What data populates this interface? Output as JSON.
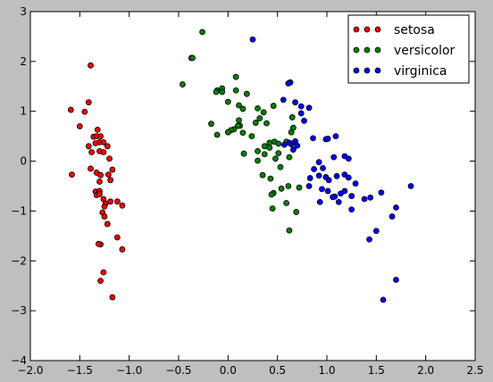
{
  "chart_data": {
    "type": "scatter",
    "xlim": [
      -2.0,
      2.5
    ],
    "ylim": [
      -4,
      3
    ],
    "x_ticks": [
      -2.0,
      -1.5,
      -1.0,
      -0.5,
      0.0,
      0.5,
      1.0,
      1.5,
      2.0,
      2.5
    ],
    "y_ticks": [
      -4,
      -3,
      -2,
      -1,
      0,
      1,
      2,
      3
    ],
    "x_tick_labels": [
      "−2.0",
      "−1.5",
      "−1.0",
      "−0.5",
      "0.0",
      "0.5",
      "1.0",
      "1.5",
      "2.0",
      "2.5"
    ],
    "y_tick_labels": [
      "−4",
      "−3",
      "−2",
      "−1",
      "0",
      "1",
      "2",
      "3"
    ],
    "grid": false,
    "legend_position": "top-right",
    "series": [
      {
        "name": "setosa",
        "color": "#ff0000",
        "points": [
          [
            -1.59,
            1.03
          ],
          [
            -1.45,
            0.99
          ],
          [
            -1.41,
            1.18
          ],
          [
            -1.39,
            1.92
          ],
          [
            -1.5,
            0.7
          ],
          [
            -1.32,
            0.63
          ],
          [
            -1.36,
            0.49
          ],
          [
            -1.33,
            0.5
          ],
          [
            -1.29,
            0.5
          ],
          [
            -1.3,
            0.38
          ],
          [
            -1.26,
            0.38
          ],
          [
            -1.22,
            0.3
          ],
          [
            -1.34,
            0.36
          ],
          [
            -1.41,
            0.3
          ],
          [
            -1.38,
            0.18
          ],
          [
            -1.3,
            0.2
          ],
          [
            -1.26,
            0.18
          ],
          [
            -1.2,
            0.05
          ],
          [
            -1.58,
            -0.27
          ],
          [
            -1.39,
            -0.15
          ],
          [
            -1.33,
            -0.23
          ],
          [
            -1.29,
            -0.28
          ],
          [
            -1.21,
            -0.27
          ],
          [
            -1.19,
            -0.38
          ],
          [
            -1.17,
            -0.17
          ],
          [
            -1.3,
            -0.41
          ],
          [
            -1.34,
            -0.61
          ],
          [
            -1.3,
            -0.6
          ],
          [
            -1.33,
            -0.68
          ],
          [
            -1.3,
            -0.66
          ],
          [
            -1.26,
            -0.76
          ],
          [
            -1.24,
            -0.85
          ],
          [
            -1.19,
            -0.81
          ],
          [
            -1.12,
            -0.81
          ],
          [
            -1.07,
            -0.89
          ],
          [
            -1.25,
            -0.91
          ],
          [
            -1.27,
            -1.03
          ],
          [
            -1.25,
            -1.11
          ],
          [
            -1.22,
            -1.26
          ],
          [
            -1.12,
            -1.53
          ],
          [
            -1.29,
            -1.67
          ],
          [
            -1.31,
            -1.66
          ],
          [
            -1.07,
            -1.77
          ],
          [
            -1.26,
            -2.23
          ],
          [
            -1.29,
            -2.4
          ],
          [
            -1.17,
            -2.73
          ]
        ]
      },
      {
        "name": "versicolor",
        "color": "#007f00",
        "points": [
          [
            -0.26,
            2.59
          ],
          [
            -0.37,
            2.07
          ],
          [
            -0.36,
            2.07
          ],
          [
            -0.46,
            1.54
          ],
          [
            0.08,
            1.69
          ],
          [
            -0.11,
            1.42
          ],
          [
            -0.06,
            1.46
          ],
          [
            -0.06,
            1.39
          ],
          [
            0.08,
            1.42
          ],
          [
            -0.12,
            1.39
          ],
          [
            0.19,
            1.35
          ],
          [
            0.0,
            1.19
          ],
          [
            0.11,
            1.12
          ],
          [
            0.15,
            1.05
          ],
          [
            0.3,
            1.06
          ],
          [
            0.36,
            0.98
          ],
          [
            0.46,
            1.11
          ],
          [
            0.32,
            0.86
          ],
          [
            0.11,
            0.82
          ],
          [
            0.28,
            0.77
          ],
          [
            0.39,
            0.76
          ],
          [
            0.12,
            0.71
          ],
          [
            0.1,
            0.71
          ],
          [
            0.06,
            0.64
          ],
          [
            0.15,
            0.57
          ],
          [
            0.03,
            0.62
          ],
          [
            0.24,
            0.5
          ],
          [
            0.0,
            0.58
          ],
          [
            -0.11,
            0.53
          ],
          [
            -0.17,
            0.75
          ],
          [
            0.42,
            0.37
          ],
          [
            0.47,
            0.39
          ],
          [
            0.51,
            0.35
          ],
          [
            0.42,
            0.27
          ],
          [
            0.59,
            0.39
          ],
          [
            0.64,
            0.58
          ],
          [
            0.65,
            0.88
          ],
          [
            0.66,
            0.67
          ],
          [
            0.37,
            0.3
          ],
          [
            0.3,
            0.2
          ],
          [
            0.37,
            0.14
          ],
          [
            0.3,
            0.01
          ],
          [
            0.16,
            0.15
          ],
          [
            0.51,
            0.16
          ],
          [
            0.48,
            0.05
          ],
          [
            0.62,
            0.08
          ],
          [
            0.53,
            -0.12
          ],
          [
            0.35,
            -0.28
          ],
          [
            0.43,
            -0.35
          ],
          [
            0.54,
            -0.55
          ],
          [
            0.46,
            -0.64
          ],
          [
            0.44,
            -0.67
          ],
          [
            0.61,
            -0.5
          ],
          [
            0.59,
            -0.84
          ],
          [
            0.72,
            -0.53
          ],
          [
            0.69,
            -1.02
          ],
          [
            0.45,
            -0.95
          ],
          [
            0.62,
            -1.39
          ]
        ]
      },
      {
        "name": "virginica",
        "color": "#0000ff",
        "points": [
          [
            0.25,
            2.44
          ],
          [
            0.63,
            1.58
          ],
          [
            0.61,
            1.56
          ],
          [
            0.56,
            1.23
          ],
          [
            0.68,
            1.18
          ],
          [
            0.74,
            1.1
          ],
          [
            0.82,
            1.07
          ],
          [
            0.74,
            0.96
          ],
          [
            0.77,
            0.81
          ],
          [
            0.86,
            0.46
          ],
          [
            0.99,
            0.44
          ],
          [
            1.01,
            0.45
          ],
          [
            1.09,
            0.5
          ],
          [
            0.64,
            0.34
          ],
          [
            0.68,
            0.4
          ],
          [
            0.57,
            0.33
          ],
          [
            0.62,
            0.37
          ],
          [
            0.7,
            0.31
          ],
          [
            0.66,
            0.23
          ],
          [
            1.07,
            0.08
          ],
          [
            1.18,
            0.1
          ],
          [
            1.22,
            0.05
          ],
          [
            0.92,
            -0.02
          ],
          [
            0.96,
            -0.14
          ],
          [
            0.87,
            -0.16
          ],
          [
            0.83,
            -0.34
          ],
          [
            0.92,
            -0.29
          ],
          [
            0.99,
            -0.32
          ],
          [
            1.02,
            -0.38
          ],
          [
            1.1,
            -0.3
          ],
          [
            1.18,
            -0.27
          ],
          [
            1.22,
            -0.33
          ],
          [
            1.29,
            -0.45
          ],
          [
            1.18,
            -0.6
          ],
          [
            1.14,
            -0.65
          ],
          [
            1.25,
            -0.7
          ],
          [
            1.08,
            -0.71
          ],
          [
            0.95,
            -0.56
          ],
          [
            0.93,
            -0.82
          ],
          [
            1.12,
            -0.82
          ],
          [
            1.25,
            -0.97
          ],
          [
            1.38,
            -0.76
          ],
          [
            1.44,
            -0.73
          ],
          [
            1.55,
            -0.63
          ],
          [
            1.85,
            -0.5
          ],
          [
            1.7,
            -0.93
          ],
          [
            1.66,
            -1.11
          ],
          [
            1.5,
            -1.4
          ],
          [
            1.43,
            -1.57
          ],
          [
            1.7,
            -2.38
          ],
          [
            1.57,
            -2.78
          ],
          [
            0.82,
            -0.5
          ],
          [
            1.01,
            -0.6
          ],
          [
            1.06,
            -0.72
          ]
        ]
      }
    ]
  }
}
